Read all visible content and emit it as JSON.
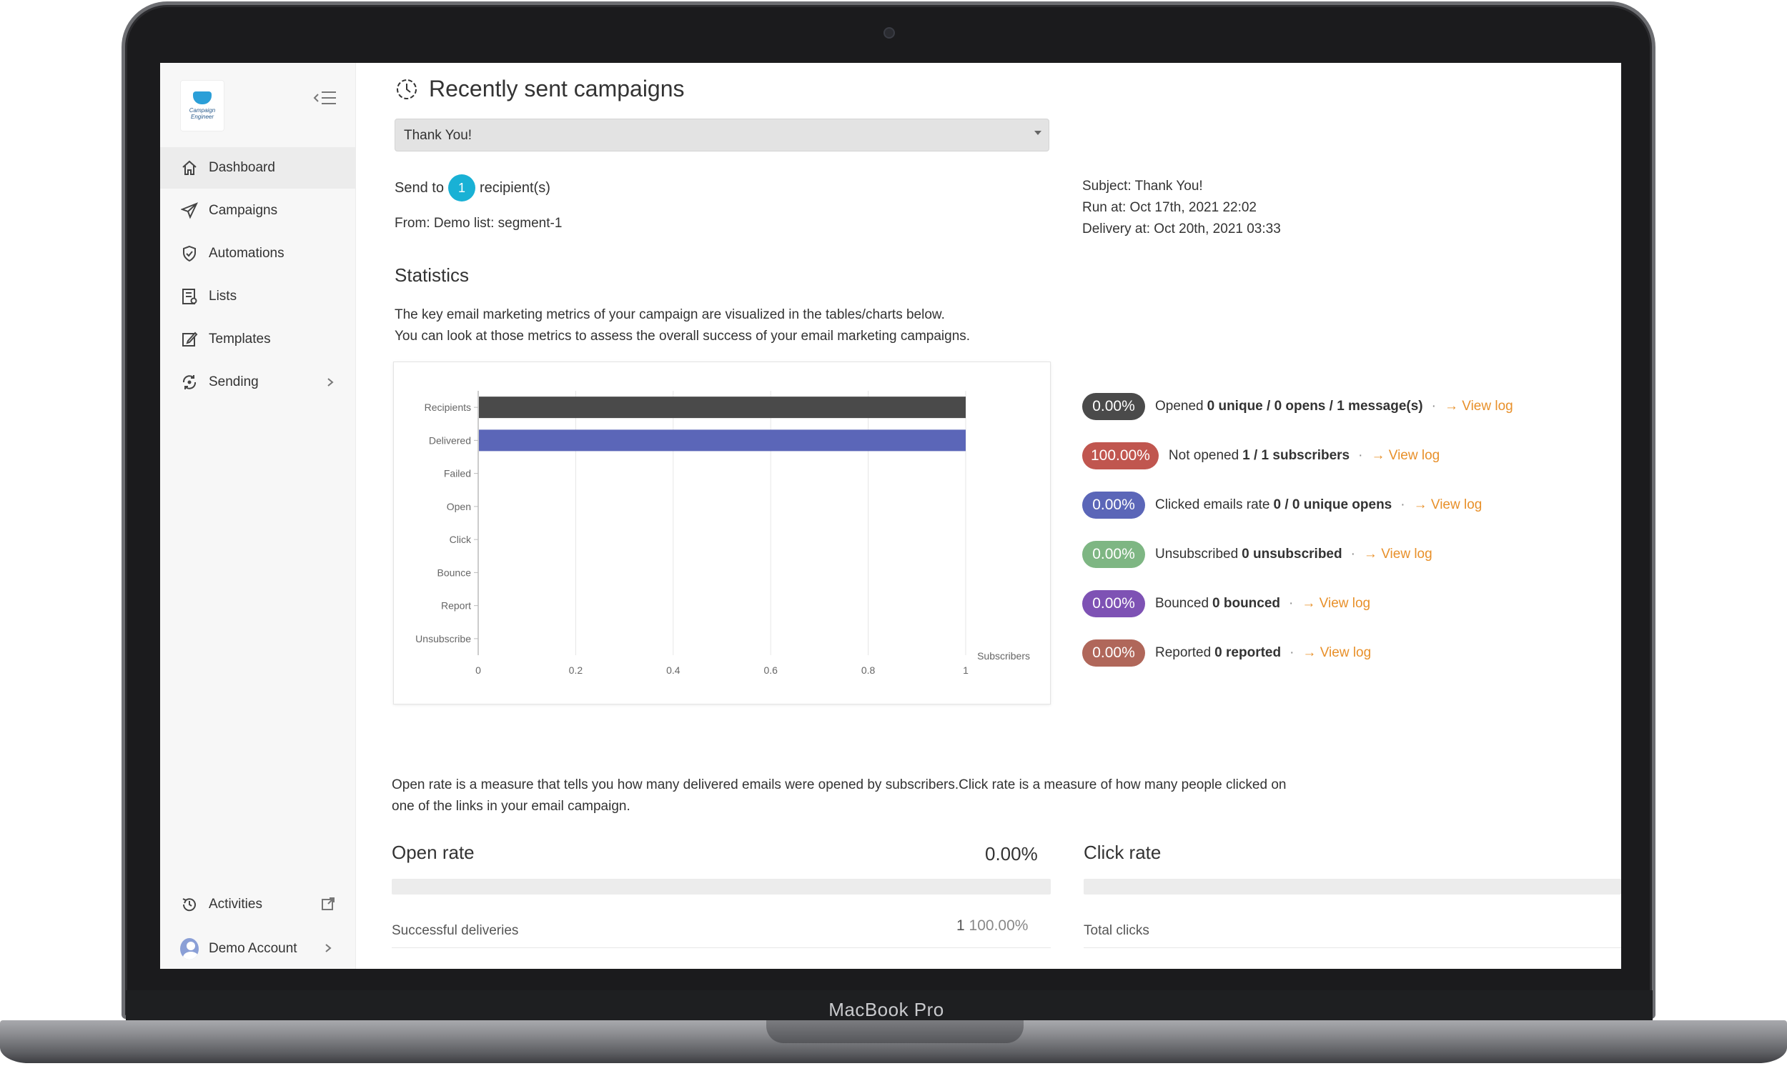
{
  "device": {
    "label": "MacBook Pro"
  },
  "app": {
    "logo_text": "Campaign Engineer",
    "nav": [
      {
        "label": "Dashboard",
        "icon": "home-icon",
        "active": true
      },
      {
        "label": "Campaigns",
        "icon": "send-icon"
      },
      {
        "label": "Automations",
        "icon": "shield-check-icon"
      },
      {
        "label": "Lists",
        "icon": "list-icon"
      },
      {
        "label": "Templates",
        "icon": "edit-icon"
      },
      {
        "label": "Sending",
        "icon": "sync-icon",
        "has_submenu": true
      }
    ],
    "bottom": {
      "activities": "Activities",
      "account": "Demo Account"
    }
  },
  "page": {
    "title": "Recently sent campaigns",
    "campaign_select": "Thank You!",
    "send_to_prefix": "Send to",
    "recipients_count": "1",
    "send_to_suffix": "recipient(s)",
    "from": "From: Demo list: segment-1",
    "subject": "Subject: Thank You!",
    "run_at": "Run at: Oct 17th, 2021 22:02",
    "delivery_at": "Delivery at: Oct 20th, 2021 03:33",
    "statistics_title": "Statistics",
    "statistics_desc_1": "The key email marketing metrics of your campaign are visualized in the tables/charts below.",
    "statistics_desc_2": "You can look at those metrics to assess the overall success of your email marketing campaigns.",
    "metrics": [
      {
        "percent": "0.00%",
        "label": "Opened",
        "detail": "0 unique / 0 opens / 1 message(s)",
        "link": "View log",
        "color": "#4a4a4a"
      },
      {
        "percent": "100.00%",
        "label": "Not opened",
        "detail": "1 / 1 subscribers",
        "link": "View log",
        "color": "#c0564f"
      },
      {
        "percent": "0.00%",
        "label": "Clicked emails rate",
        "detail": "0 / 0 unique opens",
        "link": "View log",
        "color": "#5b66b8"
      },
      {
        "percent": "0.00%",
        "label": "Unsubscribed",
        "detail": "0 unsubscribed",
        "link": "View log",
        "color": "#7eb683"
      },
      {
        "percent": "0.00%",
        "label": "Bounced",
        "detail": "0 bounced",
        "link": "View log",
        "color": "#7e52b4"
      },
      {
        "percent": "0.00%",
        "label": "Reported",
        "detail": "0 reported",
        "link": "View log",
        "color": "#b0675a"
      }
    ],
    "open_click_desc": "Open rate is a measure that tells you how many delivered emails were opened by subscribers.Click rate is a measure of how many people clicked on one of the links in your email campaign.",
    "open_rate": {
      "title": "Open rate",
      "value": "0.00%",
      "row_label": "Successful deliveries",
      "row_count": "1",
      "row_percent": "100.00%"
    },
    "click_rate": {
      "title": "Click rate",
      "row_label": "Total clicks"
    }
  },
  "chart_data": {
    "type": "bar",
    "orientation": "horizontal",
    "categories": [
      "Recipients",
      "Delivered",
      "Failed",
      "Open",
      "Click",
      "Bounce",
      "Report",
      "Unsubscribe"
    ],
    "values": [
      1,
      1,
      0,
      0,
      0,
      0,
      0,
      0
    ],
    "colors": [
      "#4a4a4a",
      "#5b66b8"
    ],
    "xlabel": "Subscribers",
    "xlim": [
      0,
      1
    ],
    "xticks": [
      "0",
      "0.2",
      "0.4",
      "0.6",
      "0.8",
      "1"
    ],
    "grid": true
  }
}
